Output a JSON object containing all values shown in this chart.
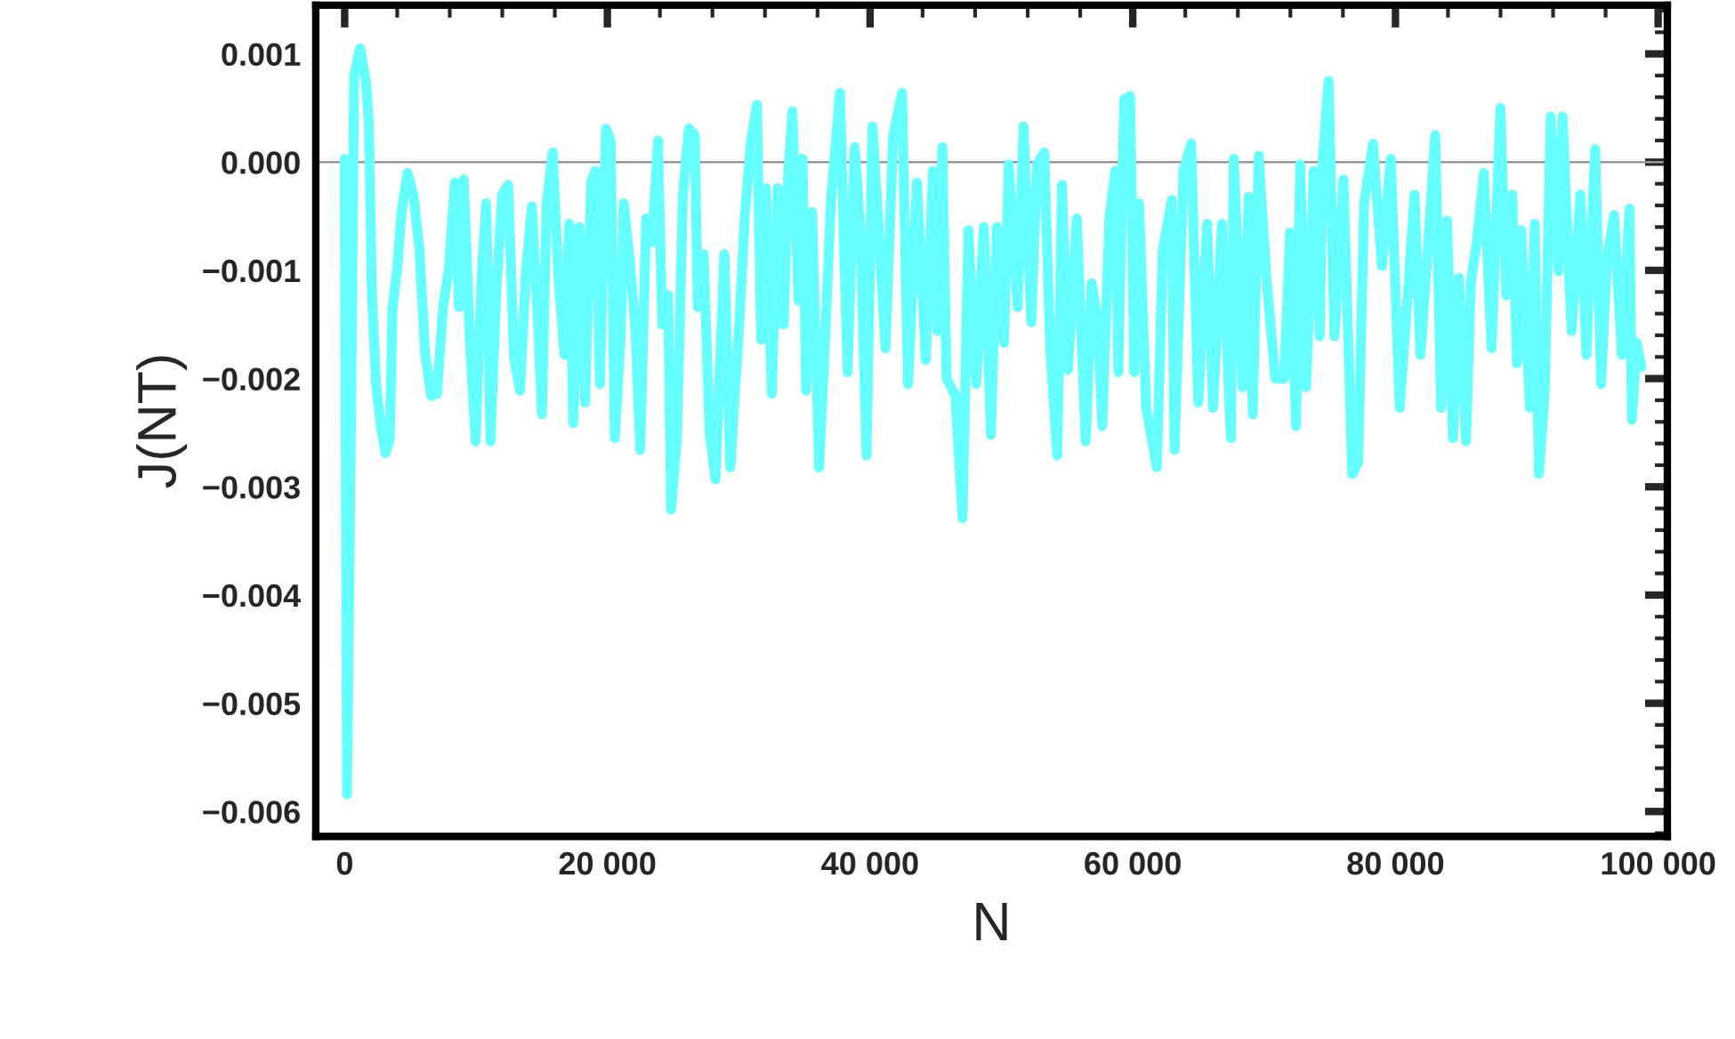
{
  "chart_data": {
    "type": "line",
    "xlabel": "N",
    "ylabel": "J(NT)",
    "xlim": [
      -2200,
      100700
    ],
    "ylim": [
      -0.00623,
      0.00145
    ],
    "xticks": [
      {
        "value": 0,
        "label": "0"
      },
      {
        "value": 20000,
        "label": "20 000"
      },
      {
        "value": 40000,
        "label": "40 000"
      },
      {
        "value": 60000,
        "label": "60 000"
      },
      {
        "value": 80000,
        "label": "80 000"
      },
      {
        "value": 100000,
        "label": "100 000"
      }
    ],
    "yticks": [
      {
        "value": 0.001,
        "label": "0.001"
      },
      {
        "value": 0,
        "label": "0.000"
      },
      {
        "value": -0.001,
        "label": "−0.001"
      },
      {
        "value": -0.002,
        "label": "−0.002"
      },
      {
        "value": -0.003,
        "label": "−0.003"
      },
      {
        "value": -0.004,
        "label": "−0.004"
      },
      {
        "value": -0.005,
        "label": "−0.005"
      },
      {
        "value": -0.006,
        "label": "−0.006"
      }
    ],
    "grid": false,
    "legend": false,
    "marker": "none",
    "line_style": "solid",
    "ref_lines": [
      {
        "axis": "y",
        "value": 0,
        "color": "#999999",
        "line_style": "solid"
      }
    ],
    "series": [
      {
        "color": "#66ffff",
        "x": [
          0,
          180,
          496,
          722,
          1172,
          1624,
          1849,
          2075,
          2390,
          2751,
          3112,
          3428,
          3653,
          4014,
          4330,
          4781,
          5232,
          5683,
          6134,
          6585,
          7036,
          7487,
          7938,
          8389,
          8704,
          9065,
          9516,
          9967,
          10418,
          10779,
          11095,
          11546,
          11997,
          12448,
          12899,
          13350,
          13801,
          14252,
          14703,
          15018,
          15379,
          15830,
          16281,
          16732,
          17093,
          17409,
          17860,
          18311,
          18762,
          19077,
          19438,
          19889,
          20250,
          20566,
          21017,
          21242,
          21693,
          22144,
          22505,
          22956,
          23407,
          23858,
          24174,
          24625,
          24850,
          25301,
          25752,
          26203,
          26654,
          26880,
          27331,
          27782,
          28233,
          28909,
          29360,
          30037,
          30488,
          30939,
          31390,
          31705,
          32066,
          32517,
          32968,
          33419,
          33780,
          34096,
          34547,
          34862,
          35133,
          35584,
          36125,
          36576,
          37027,
          37704,
          38290,
          38831,
          39282,
          39733,
          40184,
          40635,
          41176,
          41763,
          42439,
          42890,
          43567,
          44243,
          44784,
          45145,
          45506,
          45822,
          46498,
          47039,
          47490,
          48077,
          48663,
          49204,
          49655,
          50196,
          50557,
          51234,
          51685,
          52271,
          52722,
          53263,
          53714,
          54255,
          54616,
          55067,
          55744,
          56420,
          56871,
          57322,
          57683,
          58224,
          58675,
          58900,
          59351,
          59802,
          60118,
          60479,
          61020,
          61832,
          62283,
          62960,
          63185,
          63861,
          64448,
          64989,
          65666,
          66117,
          66793,
          67470,
          67695,
          68372,
          68823,
          69138,
          69589,
          70176,
          70852,
          71529,
          71980,
          72431,
          72746,
          73197,
          73784,
          74235,
          74460,
          74911,
          75362,
          76039,
          76715,
          77166,
          77617,
          78294,
          78970,
          79647,
          80323,
          81000,
          81451,
          81902,
          82578,
          83029,
          83480,
          83931,
          84382,
          84833,
          85374,
          85735,
          86186,
          86727,
          87314,
          87990,
          88441,
          88892,
          89253,
          89569,
          90245,
          90606,
          90922,
          91373,
          91824,
          92410,
          92726,
          93402,
          94079,
          94530,
          95206,
          95657,
          96108,
          96649,
          97236,
          97822,
          98002,
          98363,
          98724
        ],
        "values": [
          3e-05,
          -0.00584,
          -0.00222,
          0.0008,
          0.00105,
          0.00075,
          0.00033,
          -0.00123,
          -0.00205,
          -0.00244,
          -0.00269,
          -0.00255,
          -0.00134,
          -0.00096,
          -0.00046,
          -0.0001,
          -0.0003,
          -0.00079,
          -0.00178,
          -0.00216,
          -0.00214,
          -0.00134,
          -0.00098,
          -0.00019,
          -0.00134,
          -0.00016,
          -0.00161,
          -0.00258,
          -0.00107,
          -0.00038,
          -0.00258,
          -0.0012,
          -0.0003,
          -0.00021,
          -0.00181,
          -0.00211,
          -0.00101,
          -0.00041,
          -0.00145,
          -0.00233,
          -0.00038,
          9e-05,
          -0.00107,
          -0.00178,
          -0.00057,
          -0.00241,
          -0.0006,
          -0.00222,
          -0.00019,
          -8e-05,
          -0.00205,
          0.00031,
          0.0002,
          -0.00255,
          -0.00161,
          -0.00038,
          -0.0009,
          -0.00156,
          -0.00266,
          -0.00052,
          -0.00074,
          0.0002,
          -0.0015,
          -0.00123,
          -0.00321,
          -0.00255,
          -0.0003,
          0.00031,
          0.00025,
          -0.00134,
          -0.00085,
          -0.00249,
          -0.00293,
          -0.00085,
          -0.00282,
          -0.0015,
          -0.00046,
          0.0002,
          0.00053,
          -0.00164,
          -0.00024,
          -0.00214,
          -0.00024,
          -0.0015,
          -8e-05,
          0.00047,
          -0.00128,
          3e-05,
          -0.00211,
          -0.00046,
          -0.00282,
          -0.00164,
          -0.00035,
          0.00064,
          -0.00194,
          0.00014,
          -0.00068,
          -0.00271,
          0.00033,
          -0.00057,
          -0.00172,
          0.00025,
          0.00064,
          -0.00205,
          -0.00019,
          -0.00183,
          -8e-05,
          -0.00156,
          0.00014,
          -0.002,
          -0.00216,
          -0.00329,
          -0.00063,
          -0.00205,
          -0.0006,
          -0.00252,
          -0.0006,
          -0.00167,
          -2e-05,
          -0.00134,
          0.00033,
          -0.00148,
          -2e-05,
          9e-05,
          -0.00172,
          -0.00271,
          -0.00021,
          -0.00192,
          -0.00052,
          -0.00258,
          -0.00112,
          -0.00145,
          -0.00244,
          -0.00052,
          -8e-05,
          -0.00194,
          0.00058,
          0.00061,
          -0.00194,
          -0.00038,
          -0.00227,
          -0.00282,
          -0.00082,
          -0.00035,
          -0.00266,
          -8e-05,
          0.00017,
          -0.00222,
          -0.00057,
          -0.00227,
          -0.00057,
          -0.00255,
          3e-05,
          -0.00208,
          -0.00032,
          -0.00233,
          6e-05,
          -0.00107,
          -0.002,
          -0.002,
          -0.00065,
          -0.00244,
          -2e-05,
          -0.00208,
          -8e-05,
          -0.00161,
          3e-05,
          0.00075,
          -0.00161,
          -0.00016,
          -0.00288,
          -0.00277,
          -0.00038,
          0.00017,
          -0.00096,
          3e-05,
          -0.00227,
          -0.00112,
          -0.0003,
          -0.00178,
          -0.0006,
          0.00025,
          -0.00227,
          -0.00054,
          -0.00255,
          -0.00107,
          -0.00258,
          -0.00112,
          -0.00074,
          -0.0001,
          -0.00172,
          0.0005,
          -0.00123,
          -0.0003,
          -0.00186,
          -0.00063,
          -0.00227,
          -0.00057,
          -0.00288,
          -0.00211,
          0.00042,
          -0.00101,
          0.00042,
          -0.00156,
          -0.0003,
          -0.00178,
          0.00012,
          -0.00205,
          -0.0009,
          -0.00049,
          -0.00178,
          -0.00043,
          -0.00238,
          -0.00167,
          -0.00189
        ]
      }
    ]
  }
}
